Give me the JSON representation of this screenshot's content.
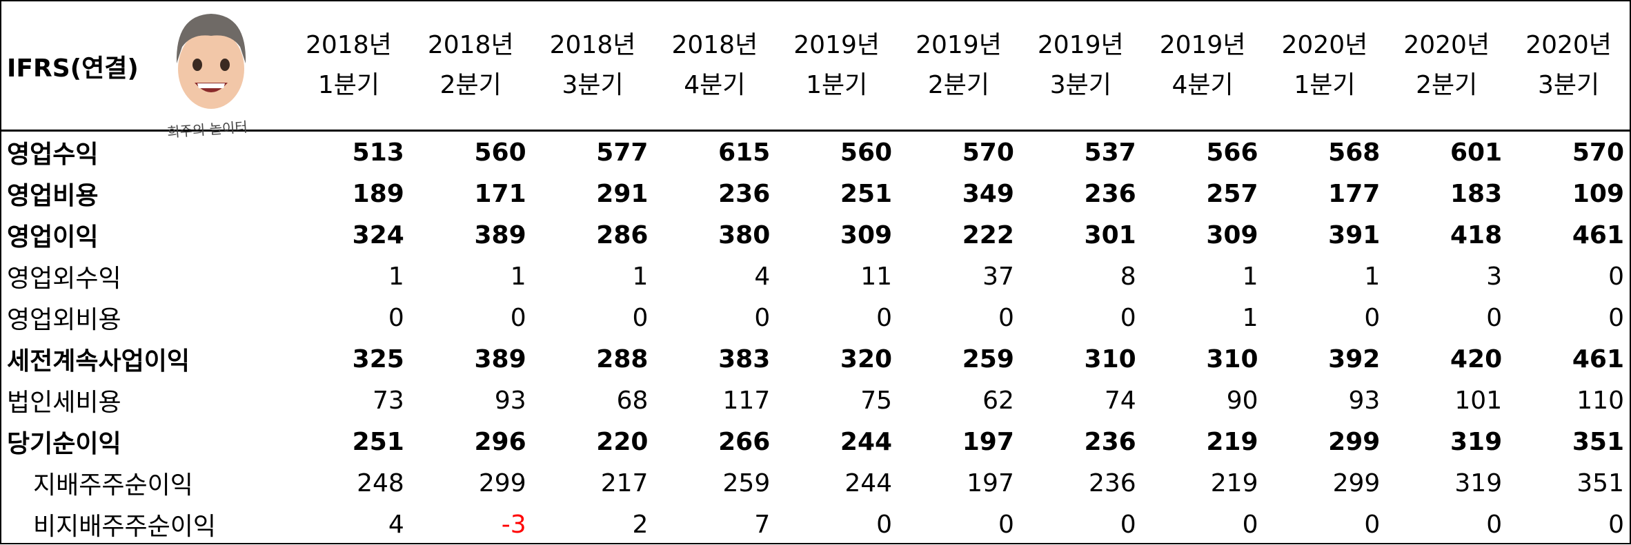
{
  "header": {
    "title": "IFRS(연결)",
    "watermark": "희주의 놀이터",
    "columns": [
      {
        "year": "2018년",
        "quarter": "1분기"
      },
      {
        "year": "2018년",
        "quarter": "2분기"
      },
      {
        "year": "2018년",
        "quarter": "3분기"
      },
      {
        "year": "2018년",
        "quarter": "4분기"
      },
      {
        "year": "2019년",
        "quarter": "1분기"
      },
      {
        "year": "2019년",
        "quarter": "2분기"
      },
      {
        "year": "2019년",
        "quarter": "3분기"
      },
      {
        "year": "2019년",
        "quarter": "4분기"
      },
      {
        "year": "2020년",
        "quarter": "1분기"
      },
      {
        "year": "2020년",
        "quarter": "2분기"
      },
      {
        "year": "2020년",
        "quarter": "3분기"
      }
    ]
  },
  "rows": [
    {
      "label": "영업수익",
      "bold": true,
      "indent": false,
      "values": [
        513,
        560,
        577,
        615,
        560,
        570,
        537,
        566,
        568,
        601,
        570
      ]
    },
    {
      "label": "영업비용",
      "bold": true,
      "indent": false,
      "values": [
        189,
        171,
        291,
        236,
        251,
        349,
        236,
        257,
        177,
        183,
        109
      ]
    },
    {
      "label": "영업이익",
      "bold": true,
      "indent": false,
      "values": [
        324,
        389,
        286,
        380,
        309,
        222,
        301,
        309,
        391,
        418,
        461
      ]
    },
    {
      "label": "영업외수익",
      "bold": false,
      "indent": false,
      "values": [
        1,
        1,
        1,
        4,
        11,
        37,
        8,
        1,
        1,
        3,
        0
      ]
    },
    {
      "label": "영업외비용",
      "bold": false,
      "indent": false,
      "values": [
        0,
        0,
        0,
        0,
        0,
        0,
        0,
        1,
        0,
        0,
        0
      ]
    },
    {
      "label": "세전계속사업이익",
      "bold": true,
      "indent": false,
      "values": [
        325,
        389,
        288,
        383,
        320,
        259,
        310,
        310,
        392,
        420,
        461
      ]
    },
    {
      "label": "법인세비용",
      "bold": false,
      "indent": false,
      "values": [
        73,
        93,
        68,
        117,
        75,
        62,
        74,
        90,
        93,
        101,
        110
      ]
    },
    {
      "label": "당기순이익",
      "bold": true,
      "indent": false,
      "values": [
        251,
        296,
        220,
        266,
        244,
        197,
        236,
        219,
        299,
        319,
        351
      ]
    },
    {
      "label": "지배주주순이익",
      "bold": false,
      "indent": true,
      "values": [
        248,
        299,
        217,
        259,
        244,
        197,
        236,
        219,
        299,
        319,
        351
      ]
    },
    {
      "label": "비지배주주순이익",
      "bold": false,
      "indent": true,
      "values": [
        4,
        -3,
        2,
        7,
        0,
        0,
        0,
        0,
        0,
        0,
        0
      ]
    }
  ]
}
